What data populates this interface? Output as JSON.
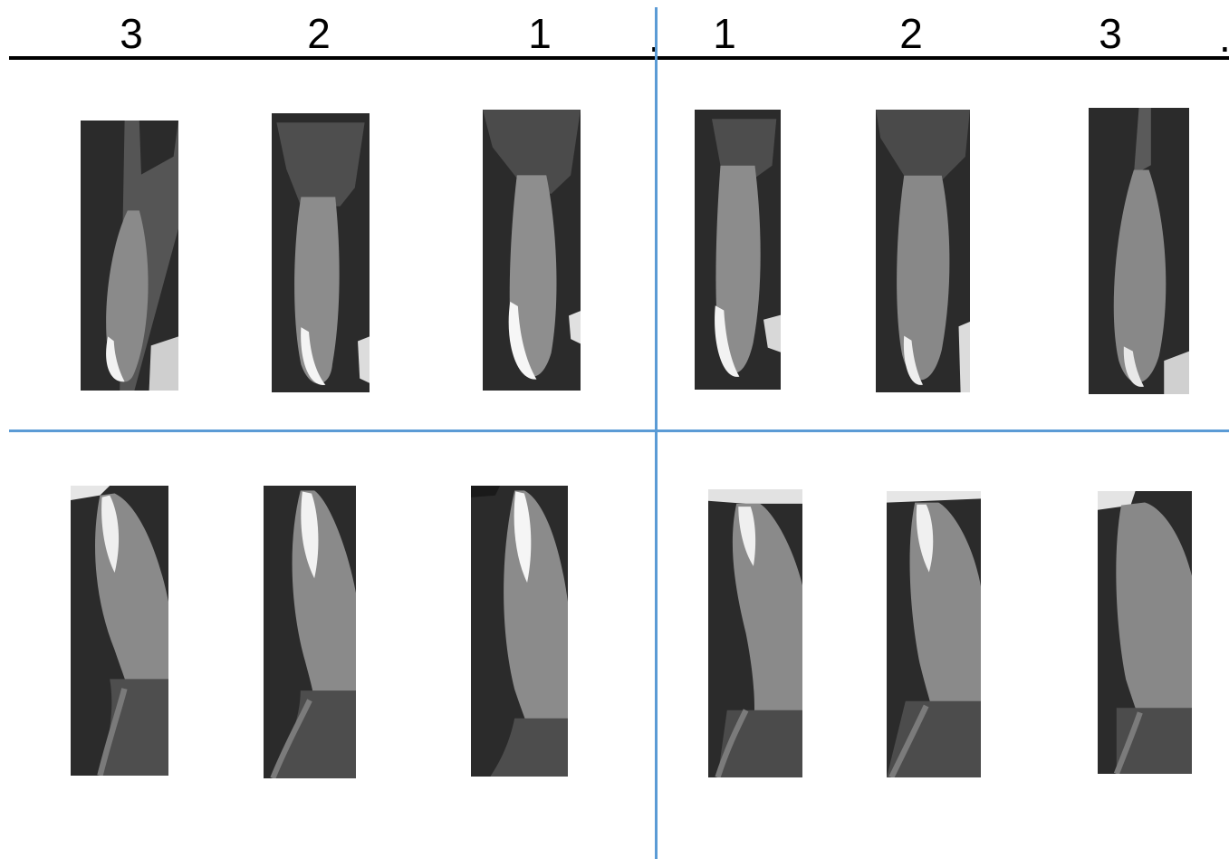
{
  "header": {
    "right_side_labels": [
      "3",
      "2",
      "1"
    ],
    "left_side_labels": [
      "1",
      "2",
      "3"
    ],
    "midline_marker": ".",
    "end_marker": "."
  },
  "scans": {
    "upper_row": [
      {
        "position": "3",
        "jaw": "maxillary",
        "side": "right"
      },
      {
        "position": "2",
        "jaw": "maxillary",
        "side": "right"
      },
      {
        "position": "1",
        "jaw": "maxillary",
        "side": "right"
      },
      {
        "position": "1",
        "jaw": "maxillary",
        "side": "left"
      },
      {
        "position": "2",
        "jaw": "maxillary",
        "side": "left"
      },
      {
        "position": "3",
        "jaw": "maxillary",
        "side": "left"
      }
    ],
    "lower_row": [
      {
        "position": "3",
        "jaw": "mandibular",
        "side": "right"
      },
      {
        "position": "2",
        "jaw": "mandibular",
        "side": "right"
      },
      {
        "position": "1",
        "jaw": "mandibular",
        "side": "right"
      },
      {
        "position": "1",
        "jaw": "mandibular",
        "side": "left"
      },
      {
        "position": "2",
        "jaw": "mandibular",
        "side": "left"
      },
      {
        "position": "3",
        "jaw": "mandibular",
        "side": "left"
      }
    ]
  },
  "colors": {
    "divider": "#5b9bd5",
    "baseline": "#000000",
    "scan_background": "#2e2e2e"
  }
}
